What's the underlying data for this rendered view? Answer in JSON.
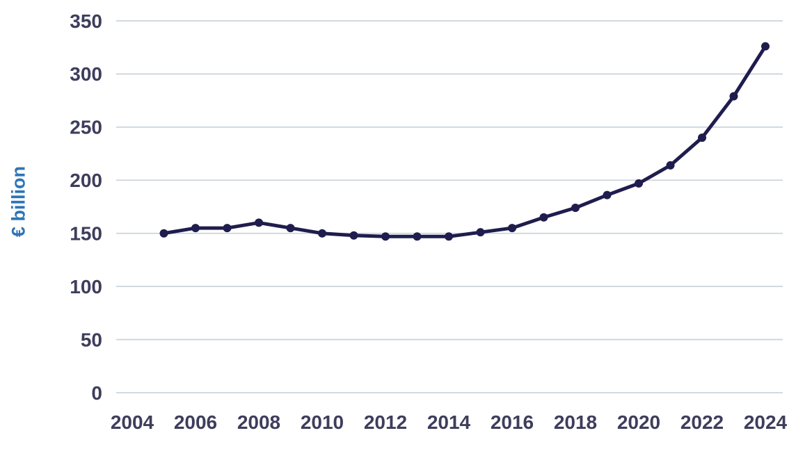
{
  "chart_data": {
    "type": "line",
    "title": "",
    "xlabel": "",
    "ylabel": "€ billion",
    "x": [
      2005,
      2006,
      2007,
      2008,
      2009,
      2010,
      2011,
      2012,
      2013,
      2014,
      2015,
      2016,
      2017,
      2018,
      2019,
      2020,
      2021,
      2022,
      2023,
      2024
    ],
    "values": [
      150,
      155,
      155,
      160,
      155,
      150,
      148,
      147,
      147,
      147,
      151,
      155,
      165,
      174,
      186,
      197,
      214,
      240,
      279,
      326
    ],
    "xticks": [
      2004,
      2006,
      2008,
      2010,
      2012,
      2014,
      2016,
      2018,
      2020,
      2022,
      2024
    ],
    "yticks": [
      0,
      50,
      100,
      150,
      200,
      250,
      300,
      350
    ],
    "ylim": [
      0,
      350
    ],
    "xlim": [
      2004,
      2024
    ],
    "grid": true,
    "legend": false,
    "colors": {
      "line": "#1f1d4d",
      "marker": "#1f1d4d",
      "gridline": "#ccd4dc",
      "tick_label": "#3d3d5c",
      "ylabel": "#2e75b6",
      "background": "#ffffff"
    }
  }
}
